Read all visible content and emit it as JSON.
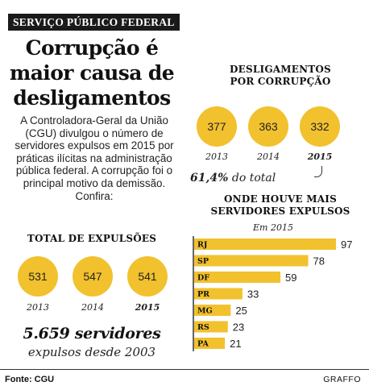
{
  "ticker": "SERVIÇO PÚBLICO FEDERAL",
  "headline": "Corrupção é maior causa de desligamentos",
  "intro": "A Controladora-Geral da União (CGU) divulgou o número de servidores expulsos em 2015 por práticas ilícitas na administração pública federal. A corrupção foi o principal motivo da demissão. Confira:",
  "total_title": "TOTAL DE EXPULSÕES",
  "total_sum": "5.659 servidores",
  "total_sub": "expulsos desde 2003",
  "corrupt_title_1": "DESLIGAMENTOS",
  "corrupt_title_2": "POR CORRUPÇÃO",
  "pct_value": "61,4%",
  "pct_label": "do total",
  "bars_title_1": "ONDE HOUVE MAIS",
  "bars_title_2": "SERVIDORES EXPULSOS",
  "bars_subtitle": "Em 2015",
  "footer_source": "Fonte: CGU",
  "footer_credit": "GRAFFO",
  "colors": {
    "accent": "#f2c12e",
    "text": "#1a1a1a"
  },
  "chart_data": [
    {
      "type": "bubble",
      "title": "TOTAL DE EXPULSÕES",
      "categories": [
        "2013",
        "2014",
        "2015"
      ],
      "values": [
        531,
        547,
        541
      ],
      "labels": [
        "531",
        "547",
        "541"
      ],
      "highlight": "2015"
    },
    {
      "type": "bubble",
      "title": "DESLIGAMENTOS POR CORRUPÇÃO",
      "categories": [
        "2013",
        "2014",
        "2015"
      ],
      "values": [
        377,
        363,
        332
      ],
      "labels": [
        "377",
        "363",
        "332"
      ],
      "highlight": "2015",
      "annotation": "61,4% do total"
    },
    {
      "type": "bar",
      "orientation": "horizontal",
      "title": "ONDE HOUVE MAIS SERVIDORES EXPULSOS",
      "subtitle": "Em 2015",
      "categories": [
        "RJ",
        "SP",
        "DF",
        "PR",
        "MG",
        "RS",
        "PA"
      ],
      "values": [
        97,
        78,
        59,
        33,
        25,
        23,
        21
      ],
      "labels": [
        "97",
        "78",
        "59",
        "33",
        "25",
        "23",
        "21"
      ],
      "xlim": [
        0,
        97
      ],
      "color": "#f2c12e"
    }
  ]
}
